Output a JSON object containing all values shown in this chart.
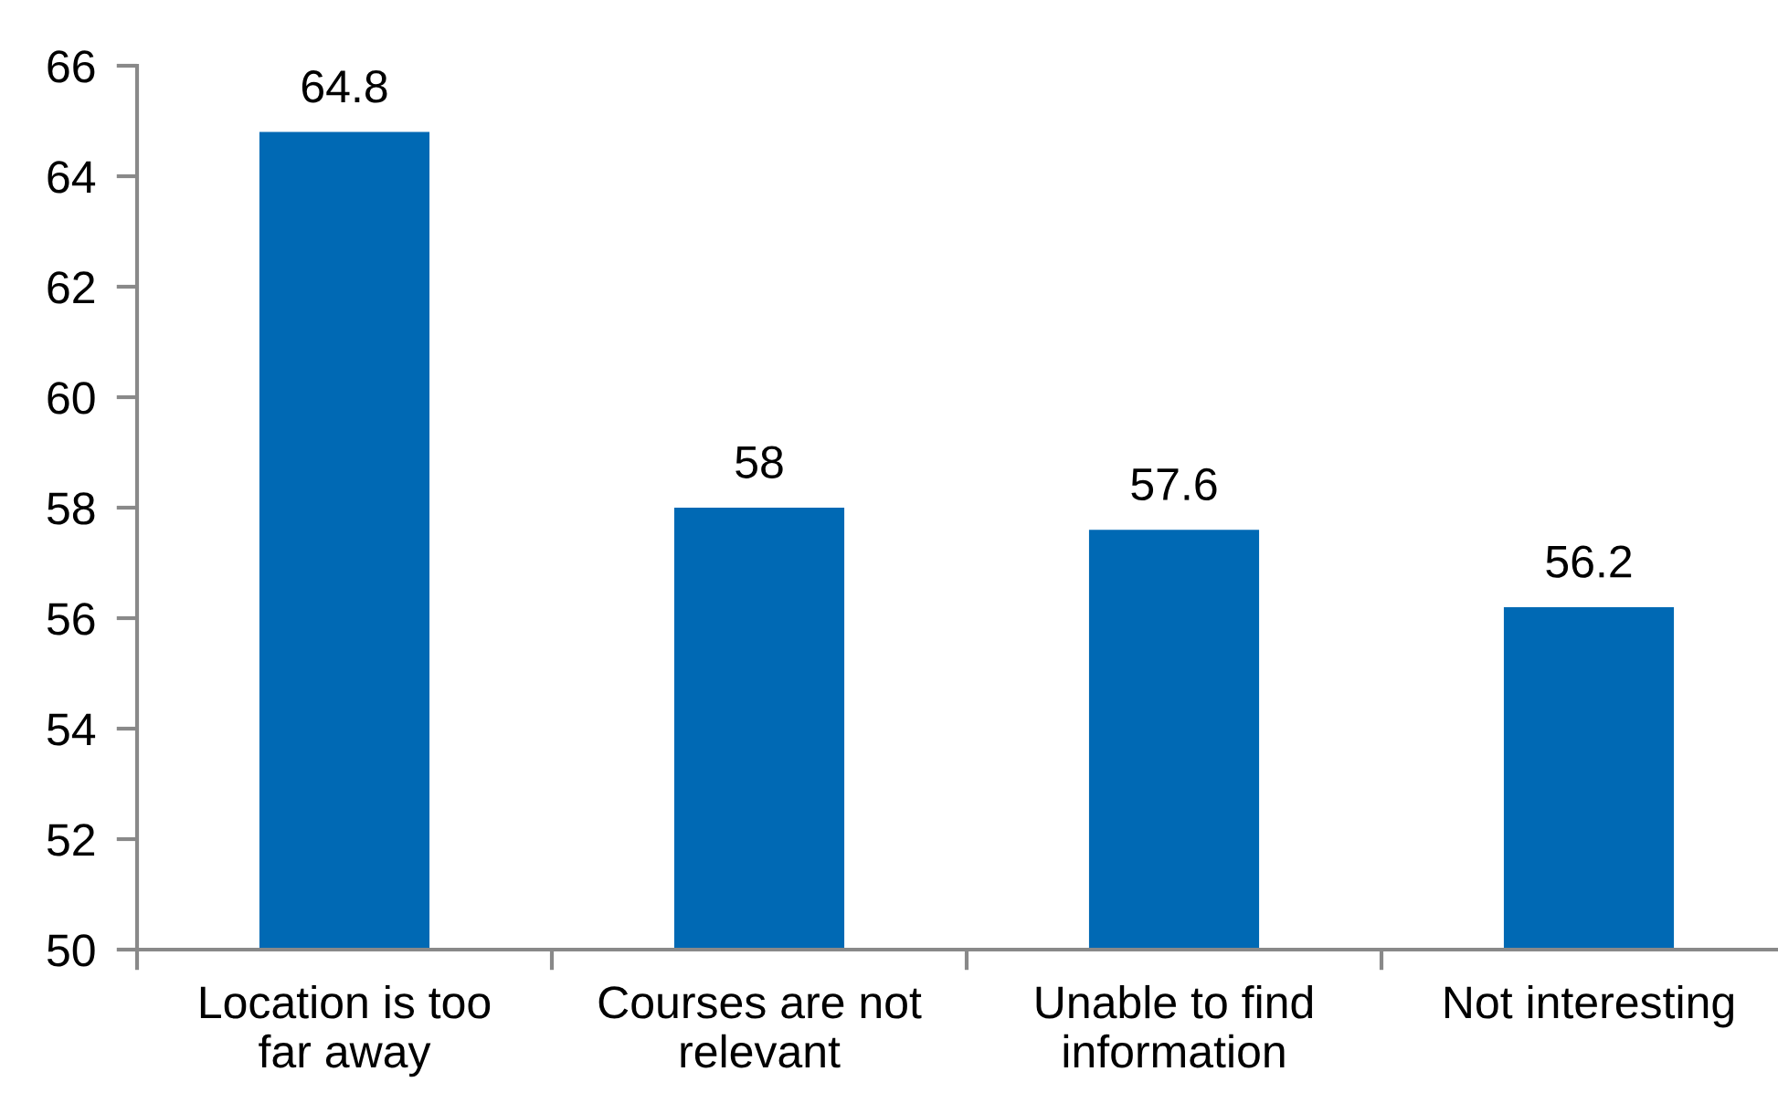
{
  "chart_data": {
    "type": "bar",
    "categories": [
      "Location is too\nfar away",
      "Courses are not\nrelevant",
      "Unable to find\ninformation",
      "Not interesting"
    ],
    "values": [
      64.8,
      58,
      57.6,
      56.2
    ],
    "color": "#0069b4",
    "ylim": [
      50,
      66
    ],
    "yticks": [
      50,
      52,
      54,
      56,
      58,
      60,
      62,
      64,
      66
    ],
    "data_labels": true,
    "grid": false,
    "legend": false
  }
}
